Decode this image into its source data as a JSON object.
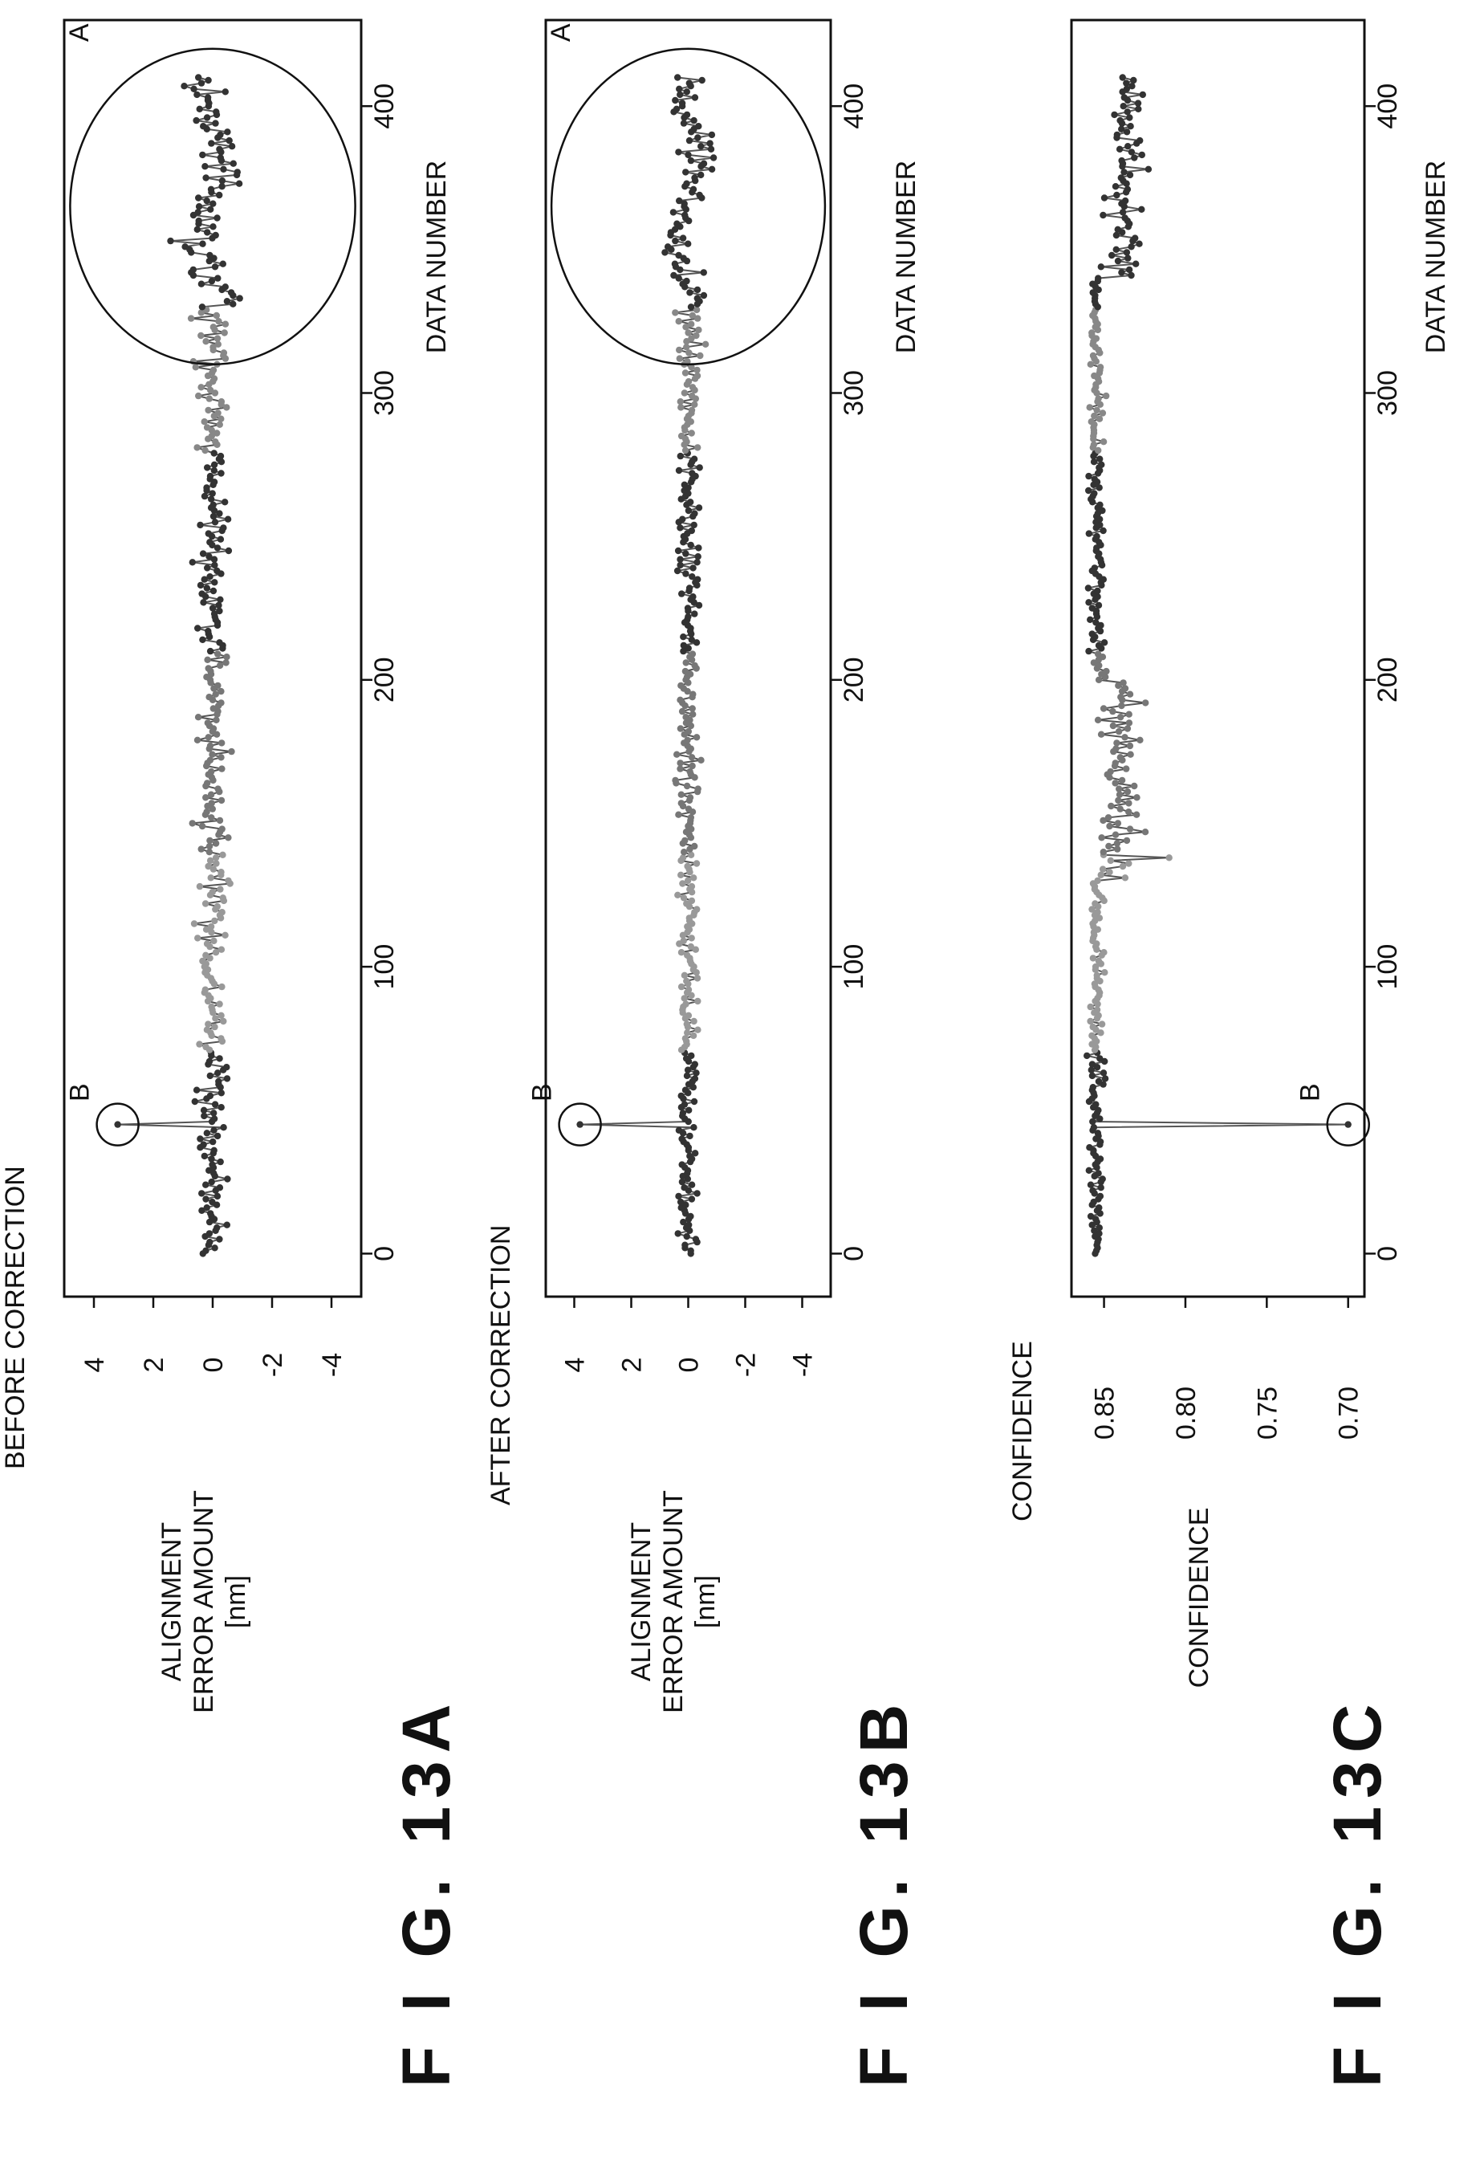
{
  "figures": [
    {
      "id": "13A",
      "fig_label": "F I G.  13A",
      "title": "BEFORE CORRECTION",
      "ylabel_lines": [
        "ALIGNMENT",
        "ERROR AMOUNT",
        "[nm]"
      ],
      "xlabel": "DATA NUMBER",
      "annotation_a": "A",
      "annotation_b": "B"
    },
    {
      "id": "13B",
      "fig_label": "F I G.  13B",
      "title": "AFTER CORRECTION",
      "ylabel_lines": [
        "ALIGNMENT",
        "ERROR AMOUNT",
        "[nm]"
      ],
      "xlabel": "DATA NUMBER",
      "annotation_a": "A",
      "annotation_b": "B"
    },
    {
      "id": "13C",
      "fig_label": "F I G.  13C",
      "title": "CONFIDENCE",
      "ylabel_lines": [
        "CONFIDENCE"
      ],
      "xlabel": "DATA NUMBER",
      "annotation_b": "B"
    }
  ],
  "chart_data": [
    {
      "type": "line",
      "title": "BEFORE CORRECTION",
      "xlabel": "DATA NUMBER",
      "ylabel": "ALIGNMENT ERROR AMOUNT [nm]",
      "xlim": [
        -15,
        430
      ],
      "ylim": [
        -5,
        5
      ],
      "x_ticks": [
        0,
        100,
        200,
        300,
        400
      ],
      "x_tick_labels": [
        "0",
        "100",
        "200",
        "300",
        "400"
      ],
      "y_ticks": [
        4,
        2,
        0,
        -2,
        -4
      ],
      "y_tick_labels": [
        "4",
        "2",
        "0",
        "-2",
        "-4"
      ],
      "x_range": [
        0,
        410
      ],
      "typical_amplitude": 0.7,
      "spikes": [
        {
          "x": 45,
          "y": 3.2
        }
      ],
      "annotations": [
        {
          "label": "A",
          "shape": "ellipse",
          "x_range": [
            310,
            420
          ],
          "y_range": [
            -4.8,
            4.8
          ]
        },
        {
          "label": "B",
          "shape": "circle",
          "x": 45,
          "y": 3.2
        }
      ]
    },
    {
      "type": "line",
      "title": "AFTER CORRECTION",
      "xlabel": "DATA NUMBER",
      "ylabel": "ALIGNMENT ERROR AMOUNT [nm]",
      "xlim": [
        -15,
        430
      ],
      "ylim": [
        -5,
        5
      ],
      "x_ticks": [
        0,
        100,
        200,
        300,
        400
      ],
      "x_tick_labels": [
        "0",
        "100",
        "200",
        "300",
        "400"
      ],
      "y_ticks": [
        4,
        2,
        0,
        -2,
        -4
      ],
      "y_tick_labels": [
        "4",
        "2",
        "0",
        "-2",
        "-4"
      ],
      "x_range": [
        0,
        410
      ],
      "typical_amplitude": 0.5,
      "spikes": [
        {
          "x": 45,
          "y": 3.8
        }
      ],
      "annotations": [
        {
          "label": "A",
          "shape": "ellipse",
          "x_range": [
            310,
            420
          ],
          "y_range": [
            -4.8,
            4.8
          ]
        },
        {
          "label": "B",
          "shape": "circle",
          "x": 45,
          "y": 3.8
        }
      ]
    },
    {
      "type": "line",
      "title": "CONFIDENCE",
      "xlabel": "DATA NUMBER",
      "ylabel": "CONFIDENCE",
      "xlim": [
        -15,
        430
      ],
      "ylim": [
        0.69,
        0.87
      ],
      "x_ticks": [
        0,
        100,
        200,
        300,
        400
      ],
      "x_tick_labels": [
        "0",
        "100",
        "200",
        "300",
        "400"
      ],
      "y_ticks": [
        0.85,
        0.8,
        0.75,
        0.7
      ],
      "y_tick_labels": [
        "0.85",
        "0.80",
        "0.75",
        "0.70"
      ],
      "x_range": [
        0,
        410
      ],
      "base_level": 0.855,
      "spikes": [
        {
          "x": 45,
          "y": 0.7
        },
        {
          "x": 138,
          "y": 0.81
        }
      ],
      "annotations": [
        {
          "label": "B",
          "shape": "circle",
          "x": 45,
          "y": 0.7
        }
      ]
    }
  ]
}
